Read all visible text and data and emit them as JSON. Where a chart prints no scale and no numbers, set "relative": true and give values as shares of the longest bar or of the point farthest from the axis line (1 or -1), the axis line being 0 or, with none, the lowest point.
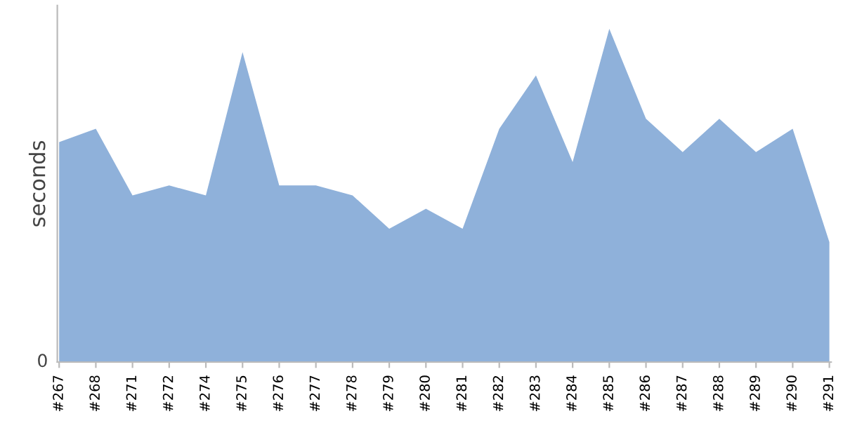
{
  "chart_data": {
    "type": "area",
    "ylabel": "seconds",
    "relative": true,
    "grid": false,
    "legend": false,
    "categories": [
      "#267",
      "#268",
      "#271",
      "#272",
      "#274",
      "#275",
      "#276",
      "#277",
      "#278",
      "#279",
      "#280",
      "#281",
      "#282",
      "#283",
      "#284",
      "#285",
      "#286",
      "#287",
      "#288",
      "#289",
      "#290",
      "#291"
    ],
    "series": [
      {
        "color": "#8fb1da",
        "values": [
          0.66,
          0.7,
          0.5,
          0.53,
          0.5,
          0.93,
          0.53,
          0.53,
          0.5,
          0.4,
          0.46,
          0.4,
          0.7,
          0.86,
          0.6,
          1,
          0.73,
          0.63,
          0.73,
          0.63,
          0.7,
          0.36
        ]
      }
    ],
    "annotations": [
      "0"
    ]
  }
}
